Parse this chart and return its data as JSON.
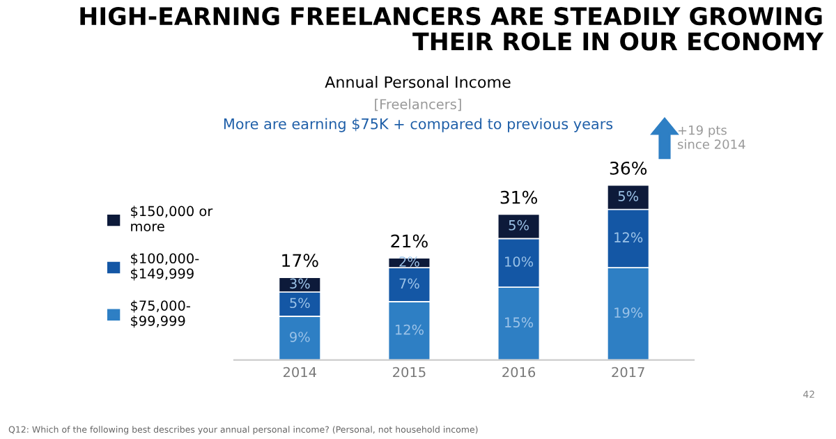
{
  "chart_data": {
    "type": "bar",
    "stacked": true,
    "title": "HIGH-EARNING FREELANCERS ARE STEADILY GROWING\nTHEIR ROLE IN OUR ECONOMY",
    "subtitle": "Annual Personal Income",
    "categories": [
      "2014",
      "2015",
      "2016",
      "2017"
    ],
    "series": [
      {
        "name": "$75,000-\n$99,999",
        "color": "#2e7fc4",
        "values": [
          9,
          12,
          15,
          19
        ],
        "value_labels": [
          "9%",
          "12%",
          "15%",
          "19%"
        ]
      },
      {
        "name": "$100,000-\n$149,999",
        "color": "#1457a5",
        "values": [
          5,
          7,
          10,
          12
        ],
        "value_labels": [
          "5%",
          "7%",
          "10%",
          "12%"
        ]
      },
      {
        "name": "$150,000 or\nmore",
        "color": "#0d1a3a",
        "values": [
          3,
          2,
          5,
          5
        ],
        "value_labels": [
          "3%",
          "2%",
          "5%",
          "5%"
        ]
      }
    ],
    "totals": [
      "17%",
      "21%",
      "31%",
      "36%"
    ],
    "legend": "left",
    "annotations": [
      "[Freelancers]",
      "More are earning $75K + compared to previous years",
      "+19 pts\nsince 2014",
      "Q12: Which of the following best describes your annual personal income? (Personal, not household income)",
      "42"
    ]
  }
}
